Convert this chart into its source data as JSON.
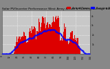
{
  "title": "Solar PV/Inverter Performance West Array Actual & Running Average Power Output",
  "title_fontsize": 3.2,
  "bg_color": "#888888",
  "plot_bg_color": "#c8c8c8",
  "bar_color": "#dd0000",
  "avg_color": "#0000ff",
  "grid_color": "#ffffff",
  "grid_style": "--",
  "tick_fontsize": 2.2,
  "legend_fontsize": 2.8,
  "legend_entries": [
    "Actual Power",
    "Running Average"
  ],
  "legend_colors": [
    "#dd0000",
    "#0000ff"
  ],
  "ylim": [
    0,
    1.15
  ],
  "xlim": [
    0,
    144
  ],
  "n_points": 144,
  "vline_positions": [
    24,
    48,
    72,
    96,
    120
  ],
  "hline_positions": [
    0.25,
    0.5,
    0.75,
    1.0
  ],
  "xtick_step": 12,
  "ytick_labels": [
    "1k",
    "2k",
    "3k",
    "4k"
  ],
  "ytick_positions": [
    0.25,
    0.5,
    0.75,
    1.0
  ],
  "ylabel_right": true
}
